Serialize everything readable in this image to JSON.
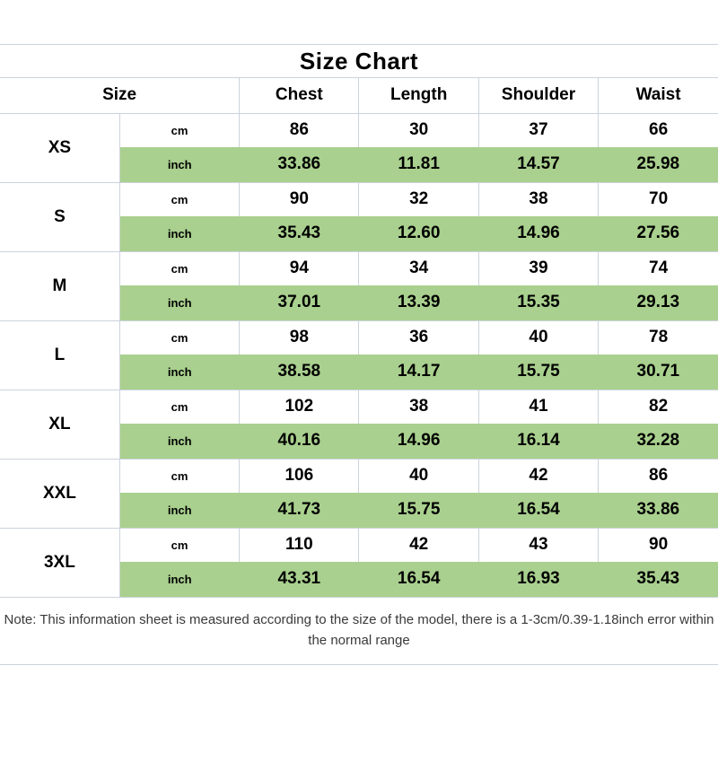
{
  "chart_data": {
    "type": "table",
    "title": "Size Chart",
    "columns": [
      "Size",
      "Chest",
      "Length",
      "Shoulder",
      "Waist"
    ],
    "unit_labels": [
      "cm",
      "inch"
    ],
    "rows": [
      {
        "size": "XS",
        "cm": [
          "86",
          "30",
          "37",
          "66"
        ],
        "inch": [
          "33.86",
          "11.81",
          "14.57",
          "25.98"
        ]
      },
      {
        "size": "S",
        "cm": [
          "90",
          "32",
          "38",
          "70"
        ],
        "inch": [
          "35.43",
          "12.60",
          "14.96",
          "27.56"
        ]
      },
      {
        "size": "M",
        "cm": [
          "94",
          "34",
          "39",
          "74"
        ],
        "inch": [
          "37.01",
          "13.39",
          "15.35",
          "29.13"
        ]
      },
      {
        "size": "L",
        "cm": [
          "98",
          "36",
          "40",
          "78"
        ],
        "inch": [
          "38.58",
          "14.17",
          "15.75",
          "30.71"
        ]
      },
      {
        "size": "XL",
        "cm": [
          "102",
          "38",
          "41",
          "82"
        ],
        "inch": [
          "40.16",
          "14.96",
          "16.14",
          "32.28"
        ]
      },
      {
        "size": "XXL",
        "cm": [
          "106",
          "40",
          "42",
          "86"
        ],
        "inch": [
          "41.73",
          "15.75",
          "16.54",
          "33.86"
        ]
      },
      {
        "size": "3XL",
        "cm": [
          "110",
          "42",
          "43",
          "90"
        ],
        "inch": [
          "43.31",
          "16.54",
          "16.93",
          "35.43"
        ]
      }
    ],
    "note": "Note: This information sheet is measured according to the size of the model, there is a 1-3cm/0.39-1.18inch error within the normal range",
    "layout_hints": {
      "highlight_rows": "inch",
      "grid_on": true
    },
    "colors": {
      "highlight_green": "#a9d08e",
      "gridline": "#ccd3dc",
      "text": "#000000",
      "note_text": "#3a3a3a"
    }
  }
}
